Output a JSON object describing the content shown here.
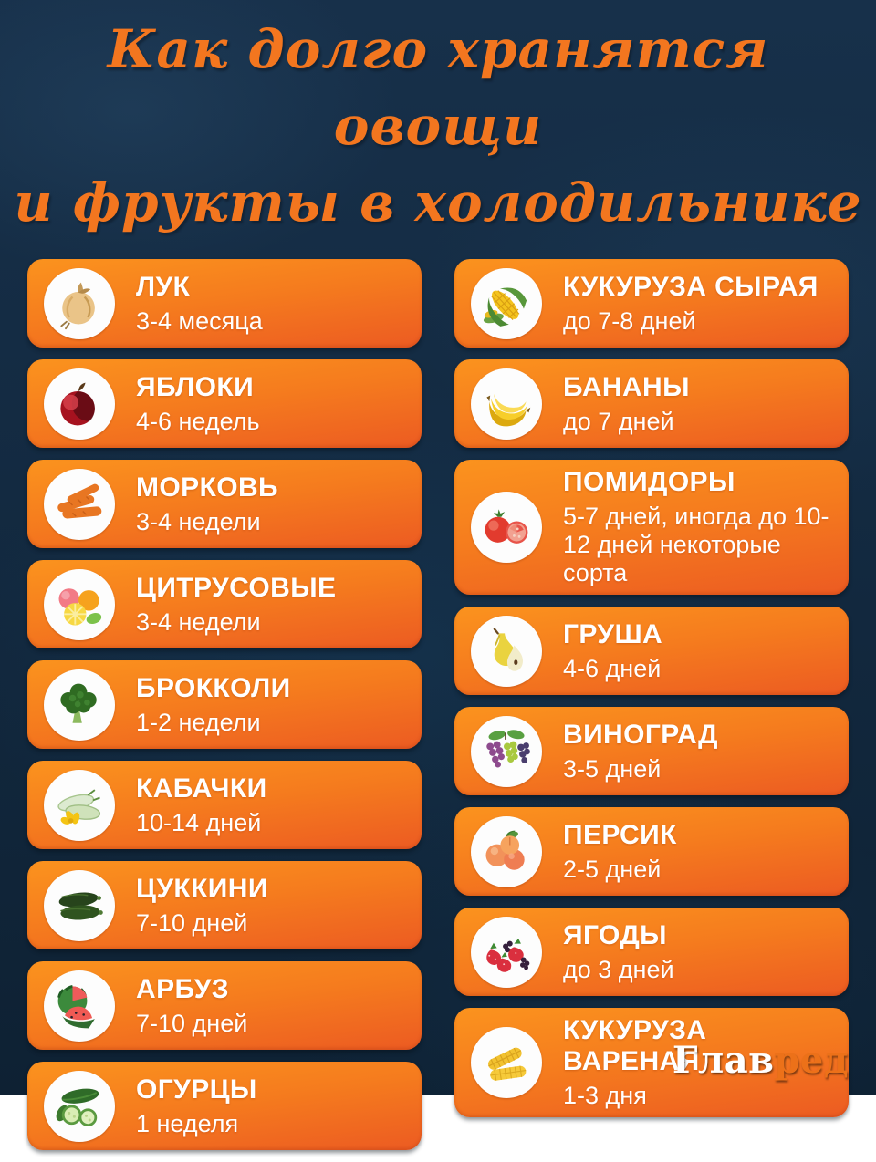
{
  "title": {
    "line1": "Как долго хранятся овощи",
    "line2": "и фрукты в холодильнике"
  },
  "columns": {
    "left": [
      {
        "name": "ЛУК",
        "duration": "3-4 месяца",
        "icon": "onion-icon"
      },
      {
        "name": "ЯБЛОКИ",
        "duration": "4-6 недель",
        "icon": "apple-icon"
      },
      {
        "name": "МОРКОВЬ",
        "duration": "3-4 недели",
        "icon": "carrot-icon"
      },
      {
        "name": "ЦИТРУСОВЫЕ",
        "duration": "3-4 недели",
        "icon": "citrus-icon"
      },
      {
        "name": "БРОККОЛИ",
        "duration": "1-2 недели",
        "icon": "broccoli-icon"
      },
      {
        "name": "КАБАЧКИ",
        "duration": "10-14 дней",
        "icon": "squash-icon"
      },
      {
        "name": "ЦУККИНИ",
        "duration": "7-10 дней",
        "icon": "zucchini-icon"
      },
      {
        "name": "АРБУЗ",
        "duration": "7-10 дней",
        "icon": "watermelon-icon"
      },
      {
        "name": "ОГУРЦЫ",
        "duration": "1 неделя",
        "icon": "cucumber-icon"
      }
    ],
    "right": [
      {
        "name": "КУКУРУЗА СЫРАЯ",
        "duration": "до 7-8 дней",
        "icon": "corn-raw-icon"
      },
      {
        "name": "БАНАНЫ",
        "duration": "до 7 дней",
        "icon": "banana-icon"
      },
      {
        "name": "ПОМИДОРЫ",
        "duration": "5-7 дней, иногда до 10-12 дней некоторые сорта",
        "icon": "tomato-icon"
      },
      {
        "name": "ГРУША",
        "duration": "4-6 дней",
        "icon": "pear-icon"
      },
      {
        "name": "ВИНОГРАД",
        "duration": "3-5 дней",
        "icon": "grape-icon"
      },
      {
        "name": "ПЕРСИК",
        "duration": "2-5 дней",
        "icon": "peach-icon"
      },
      {
        "name": "ЯГОДЫ",
        "duration": "до 3 дней",
        "icon": "berries-icon"
      },
      {
        "name": "КУКУРУЗА ВАРЕНАЯ",
        "duration": "1-3 дня",
        "icon": "corn-boiled-icon"
      }
    ]
  },
  "logo": {
    "part1": "Глав",
    "part2": "ред"
  },
  "colors": {
    "background": "#132a41",
    "card_gradient_top": "#fb931e",
    "card_gradient_bottom": "#ec5b22",
    "title_text": "#f3761f",
    "card_text": "#ffffff",
    "logo_accent": "#ec7119"
  }
}
